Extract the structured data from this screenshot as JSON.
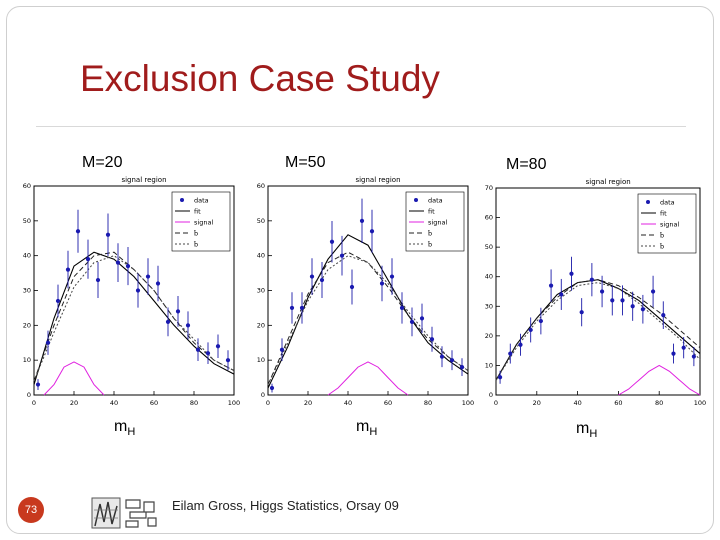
{
  "slide": {
    "title": "Exclusion Case Study",
    "page_number": "73",
    "footer": "Eilam Gross, Higgs Statistics, Orsay 09",
    "accent_color": "#a01c1c",
    "page_badge_color": "#c8391e",
    "logo_icon": "institution-logo-icon"
  },
  "chart_data": [
    {
      "type": "scatter",
      "mass_label": "M=20",
      "region_label": "signal region",
      "xlabel_main": "m",
      "xlabel_sub": "H",
      "xlim": [
        0,
        100
      ],
      "ylim": [
        0,
        60
      ],
      "xticks": [
        0,
        20,
        40,
        60,
        80,
        100
      ],
      "yticks": [
        0,
        10,
        20,
        30,
        40,
        50,
        60
      ],
      "legend_position": "top-right",
      "legend": [
        "data",
        "fit",
        "signal",
        "b̂",
        "b̃"
      ],
      "series": [
        {
          "name": "data",
          "x": [
            2,
            7,
            12,
            17,
            22,
            27,
            32,
            37,
            42,
            47,
            52,
            57,
            62,
            67,
            72,
            77,
            82,
            87,
            92,
            97
          ],
          "y": [
            3,
            15,
            27,
            36,
            47,
            39,
            33,
            46,
            38,
            37,
            30,
            34,
            32,
            21,
            24,
            20,
            13,
            12,
            14,
            10
          ]
        },
        {
          "name": "fit",
          "x": [
            0,
            10,
            20,
            30,
            40,
            50,
            60,
            70,
            80,
            90,
            100
          ],
          "y": [
            3,
            22,
            37,
            41,
            39,
            34,
            27,
            20,
            14,
            9,
            6
          ]
        },
        {
          "name": "signal",
          "x": [
            5,
            10,
            15,
            20,
            25,
            30,
            35
          ],
          "y": [
            0,
            3,
            8,
            9.5,
            8,
            3,
            0
          ]
        },
        {
          "name": "b̂",
          "x": [
            0,
            10,
            20,
            30,
            40,
            50,
            60,
            70,
            80,
            90,
            100
          ],
          "y": [
            4,
            20,
            34,
            40,
            41,
            36,
            30,
            22,
            15,
            10,
            7
          ]
        },
        {
          "name": "b̃",
          "x": [
            0,
            10,
            20,
            30,
            40,
            50,
            60,
            70,
            80,
            90,
            100
          ],
          "y": [
            4,
            18,
            31,
            38,
            40,
            36,
            30,
            22,
            16,
            10,
            7
          ]
        }
      ]
    },
    {
      "type": "scatter",
      "mass_label": "M=50",
      "region_label": "signal region",
      "xlabel_main": "m",
      "xlabel_sub": "H",
      "xlim": [
        0,
        100
      ],
      "ylim": [
        0,
        60
      ],
      "xticks": [
        0,
        20,
        40,
        60,
        80,
        100
      ],
      "yticks": [
        0,
        10,
        20,
        30,
        40,
        50,
        60
      ],
      "legend_position": "top-right",
      "legend": [
        "data",
        "fit",
        "signal",
        "b̂",
        "b̃"
      ],
      "series": [
        {
          "name": "data",
          "x": [
            2,
            7,
            12,
            17,
            22,
            27,
            32,
            37,
            42,
            47,
            52,
            57,
            62,
            67,
            72,
            77,
            82,
            87,
            92,
            97
          ],
          "y": [
            2,
            13,
            25,
            25,
            34,
            33,
            44,
            40,
            31,
            50,
            47,
            32,
            34,
            25,
            21,
            22,
            16,
            11,
            10,
            8
          ]
        },
        {
          "name": "fit",
          "x": [
            0,
            10,
            20,
            30,
            40,
            50,
            60,
            70,
            80,
            90,
            100
          ],
          "y": [
            2,
            14,
            28,
            39,
            46,
            43,
            33,
            23,
            15,
            10,
            6
          ]
        },
        {
          "name": "signal",
          "x": [
            30,
            35,
            40,
            45,
            50,
            55,
            60,
            65,
            70
          ],
          "y": [
            0,
            2,
            5,
            8,
            9.5,
            8,
            5,
            2,
            0
          ]
        },
        {
          "name": "b̂",
          "x": [
            0,
            10,
            20,
            30,
            40,
            50,
            60,
            70,
            80,
            90,
            100
          ],
          "y": [
            3,
            16,
            29,
            38,
            41,
            38,
            31,
            23,
            16,
            11,
            7
          ]
        },
        {
          "name": "b̃",
          "x": [
            0,
            10,
            20,
            30,
            40,
            50,
            60,
            70,
            80,
            90,
            100
          ],
          "y": [
            3,
            15,
            27,
            36,
            40,
            38,
            32,
            24,
            17,
            11,
            7
          ]
        }
      ]
    },
    {
      "type": "scatter",
      "mass_label": "M=80",
      "region_label": "signal region",
      "xlabel_main": "m",
      "xlabel_sub": "H",
      "xlim": [
        0,
        100
      ],
      "ylim": [
        0,
        70
      ],
      "xticks": [
        0,
        20,
        40,
        60,
        80,
        100
      ],
      "yticks": [
        0,
        10,
        20,
        30,
        40,
        50,
        60,
        70
      ],
      "legend_position": "top-right",
      "legend": [
        "data",
        "fit",
        "signal",
        "b̂",
        "b̃"
      ],
      "series": [
        {
          "name": "data",
          "x": [
            2,
            7,
            12,
            17,
            22,
            27,
            32,
            37,
            42,
            47,
            52,
            57,
            62,
            67,
            72,
            77,
            82,
            87,
            92,
            97
          ],
          "y": [
            6,
            14,
            17,
            22,
            25,
            37,
            34,
            41,
            28,
            39,
            35,
            32,
            32,
            30,
            29,
            35,
            27,
            14,
            16,
            13
          ]
        },
        {
          "name": "fit",
          "x": [
            0,
            10,
            20,
            30,
            40,
            50,
            60,
            70,
            80,
            90,
            100
          ],
          "y": [
            5,
            17,
            26,
            34,
            38,
            39,
            36,
            32,
            26,
            20,
            14
          ]
        },
        {
          "name": "signal",
          "x": [
            60,
            65,
            70,
            75,
            80,
            85,
            90,
            95,
            100
          ],
          "y": [
            0,
            2,
            5,
            8,
            10,
            8,
            5,
            2,
            0
          ]
        },
        {
          "name": "b̂",
          "x": [
            0,
            10,
            20,
            30,
            40,
            50,
            60,
            70,
            80,
            90,
            100
          ],
          "y": [
            5,
            17,
            26,
            33,
            38,
            39,
            37,
            33,
            28,
            22,
            16
          ]
        },
        {
          "name": "b̃",
          "x": [
            0,
            10,
            20,
            30,
            40,
            50,
            60,
            70,
            80,
            90,
            100
          ],
          "y": [
            5,
            16,
            25,
            32,
            37,
            38,
            36,
            31,
            25,
            19,
            12
          ]
        }
      ]
    }
  ]
}
